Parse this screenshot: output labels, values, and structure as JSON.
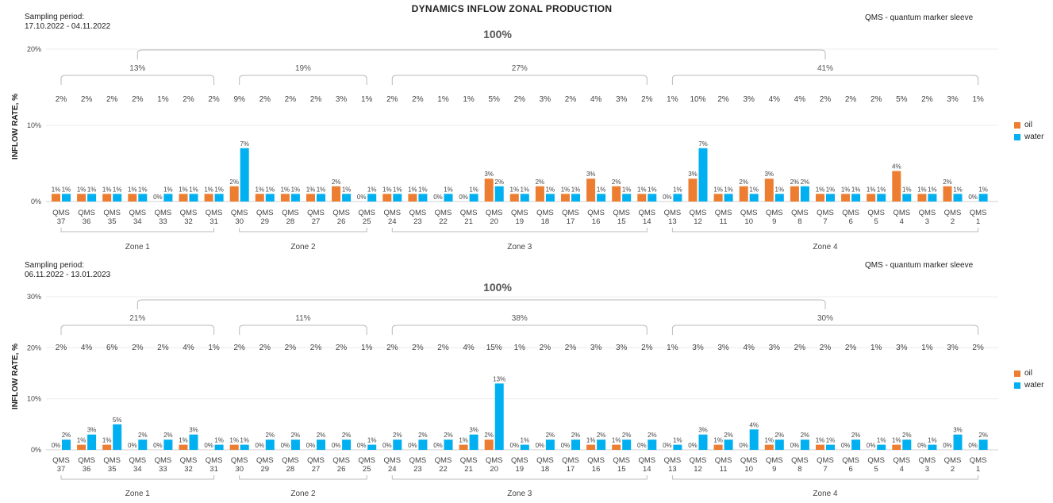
{
  "title": "DYNAMICS INFLOW ZONAL PRODUCTION",
  "chart_data": [
    {
      "type": "bar",
      "sampling_label": "Sampling period:",
      "sampling_period": "17.10.2022 - 04.11.2022",
      "note": "QMS - quantum marker sleeve",
      "total": "100%",
      "ylabel": "INFLOW RATE, %",
      "ylim": [
        0,
        20
      ],
      "yticks": [
        0,
        10,
        20
      ],
      "yticklabels": [
        "0%",
        "10%",
        "20%"
      ],
      "categories": [
        "QMS 37",
        "QMS 36",
        "QMS 35",
        "QMS 34",
        "QMS 33",
        "QMS 32",
        "QMS 31",
        "QMS 30",
        "QMS 29",
        "QMS 28",
        "QMS 27",
        "QMS 26",
        "QMS 25",
        "QMS 24",
        "QMS 23",
        "QMS 22",
        "QMS 21",
        "QMS 20",
        "QMS 19",
        "QMS 18",
        "QMS 17",
        "QMS 16",
        "QMS 15",
        "QMS 14",
        "QMS 13",
        "QMS 12",
        "QMS 11",
        "QMS 10",
        "QMS 9",
        "QMS 8",
        "QMS 7",
        "QMS 6",
        "QMS 5",
        "QMS 4",
        "QMS 3",
        "QMS 2",
        "QMS 1"
      ],
      "totals": [
        "2%",
        "2%",
        "2%",
        "2%",
        "1%",
        "2%",
        "2%",
        "9%",
        "2%",
        "2%",
        "2%",
        "3%",
        "1%",
        "2%",
        "2%",
        "1%",
        "1%",
        "5%",
        "2%",
        "3%",
        "2%",
        "4%",
        "3%",
        "2%",
        "1%",
        "10%",
        "2%",
        "3%",
        "4%",
        "4%",
        "2%",
        "2%",
        "2%",
        "5%",
        "2%",
        "3%",
        "1%"
      ],
      "series": [
        {
          "name": "oil",
          "color": "#ED7D31",
          "values": [
            1,
            1,
            1,
            1,
            0,
            1,
            1,
            2,
            1,
            1,
            1,
            2,
            0,
            1,
            1,
            0,
            0,
            3,
            1,
            2,
            1,
            3,
            2,
            1,
            0,
            3,
            1,
            2,
            3,
            2,
            1,
            1,
            1,
            4,
            1,
            2,
            0
          ]
        },
        {
          "name": "water",
          "color": "#00B0F0",
          "values": [
            1,
            1,
            1,
            1,
            1,
            1,
            1,
            7,
            1,
            1,
            1,
            1,
            1,
            1,
            1,
            1,
            1,
            2,
            1,
            1,
            1,
            1,
            1,
            1,
            1,
            7,
            1,
            1,
            1,
            2,
            1,
            1,
            1,
            1,
            1,
            1,
            1
          ]
        }
      ],
      "zones": [
        {
          "name": "Zone 1",
          "share": "13%",
          "first": 0,
          "last": 6
        },
        {
          "name": "Zone 2",
          "share": "19%",
          "first": 7,
          "last": 12
        },
        {
          "name": "Zone 3",
          "share": "27%",
          "first": 13,
          "last": 23
        },
        {
          "name": "Zone 4",
          "share": "41%",
          "first": 24,
          "last": 36
        }
      ],
      "legend_position": "right"
    },
    {
      "type": "bar",
      "sampling_label": "Sampling period:",
      "sampling_period": "06.11.2022 - 13.01.2023",
      "note": "QMS - quantum marker sleeve",
      "total": "100%",
      "ylabel": "INFLOW RATE, %",
      "ylim": [
        0,
        30
      ],
      "yticks": [
        0,
        10,
        20,
        30
      ],
      "yticklabels": [
        "0%",
        "10%",
        "20%",
        "30%"
      ],
      "categories": [
        "QMS 37",
        "QMS 36",
        "QMS 35",
        "QMS 34",
        "QMS 33",
        "QMS 32",
        "QMS 31",
        "QMS 30",
        "QMS 29",
        "QMS 28",
        "QMS 27",
        "QMS 26",
        "QMS 25",
        "QMS 24",
        "QMS 23",
        "QMS 22",
        "QMS 21",
        "QMS 20",
        "QMS 19",
        "QMS 18",
        "QMS 17",
        "QMS 16",
        "QMS 15",
        "QMS 14",
        "QMS 13",
        "QMS 12",
        "QMS 11",
        "QMS 10",
        "QMS 9",
        "QMS 8",
        "QMS 7",
        "QMS 6",
        "QMS 5",
        "QMS 4",
        "QMS 3",
        "QMS 2",
        "QMS 1"
      ],
      "totals": [
        "2%",
        "4%",
        "6%",
        "2%",
        "2%",
        "4%",
        "1%",
        "2%",
        "2%",
        "2%",
        "2%",
        "2%",
        "1%",
        "2%",
        "2%",
        "2%",
        "4%",
        "15%",
        "1%",
        "2%",
        "2%",
        "3%",
        "3%",
        "2%",
        "1%",
        "3%",
        "3%",
        "4%",
        "3%",
        "2%",
        "2%",
        "2%",
        "1%",
        "3%",
        "1%",
        "3%",
        "2%"
      ],
      "series": [
        {
          "name": "oil",
          "color": "#ED7D31",
          "values": [
            0,
            1,
            1,
            0,
            0,
            1,
            0,
            1,
            0,
            0,
            0,
            0,
            0,
            0,
            0,
            0,
            1,
            2,
            0,
            0,
            0,
            1,
            1,
            0,
            0,
            0,
            1,
            0,
            1,
            0,
            1,
            0,
            0,
            1,
            0,
            0,
            0
          ]
        },
        {
          "name": "water",
          "color": "#00B0F0",
          "values": [
            2,
            3,
            5,
            2,
            2,
            3,
            1,
            1,
            2,
            2,
            2,
            2,
            1,
            2,
            2,
            2,
            3,
            13,
            1,
            2,
            2,
            2,
            2,
            2,
            1,
            3,
            2,
            4,
            2,
            2,
            1,
            2,
            1,
            2,
            1,
            3,
            2
          ]
        }
      ],
      "zones": [
        {
          "name": "Zone 1",
          "share": "21%",
          "first": 0,
          "last": 6
        },
        {
          "name": "Zone 2",
          "share": "11%",
          "first": 7,
          "last": 12
        },
        {
          "name": "Zone 3",
          "share": "38%",
          "first": 13,
          "last": 23
        },
        {
          "name": "Zone 4",
          "share": "30%",
          "first": 24,
          "last": 36
        }
      ],
      "legend_position": "right"
    }
  ]
}
